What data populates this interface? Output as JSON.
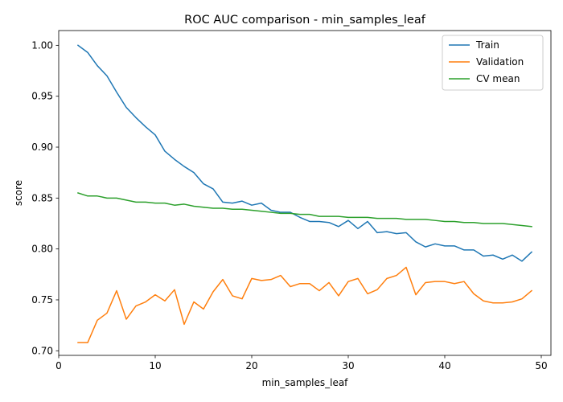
{
  "chart_data": {
    "type": "line",
    "title": "ROC AUC comparison - min_samples_leaf",
    "xlabel": "min_samples_leaf",
    "ylabel": "score",
    "xlim": [
      0,
      51
    ],
    "ylim": [
      0.6955,
      1.0145
    ],
    "xticks": [
      0,
      10,
      20,
      30,
      40,
      50
    ],
    "yticks": [
      0.7,
      0.75,
      0.8,
      0.85,
      0.9,
      0.95,
      1.0
    ],
    "ytick_labels": [
      "0.70",
      "0.75",
      "0.80",
      "0.85",
      "0.90",
      "0.95",
      "1.00"
    ],
    "grid": false,
    "legend_position": "top-right",
    "x": [
      2,
      3,
      4,
      5,
      6,
      7,
      8,
      9,
      10,
      11,
      12,
      13,
      14,
      15,
      16,
      17,
      18,
      19,
      20,
      21,
      22,
      23,
      24,
      25,
      26,
      27,
      28,
      29,
      30,
      31,
      32,
      33,
      34,
      35,
      36,
      37,
      38,
      39,
      40,
      41,
      42,
      43,
      44,
      45,
      46,
      47,
      48,
      49
    ],
    "series": [
      {
        "name": "Train",
        "color": "#1f77b4",
        "values": [
          1.0,
          0.993,
          0.98,
          0.97,
          0.954,
          0.939,
          0.929,
          0.92,
          0.912,
          0.896,
          0.888,
          0.881,
          0.875,
          0.864,
          0.859,
          0.846,
          0.845,
          0.847,
          0.843,
          0.845,
          0.838,
          0.836,
          0.836,
          0.831,
          0.827,
          0.827,
          0.826,
          0.822,
          0.828,
          0.82,
          0.827,
          0.816,
          0.817,
          0.815,
          0.816,
          0.807,
          0.802,
          0.805,
          0.803,
          0.803,
          0.799,
          0.799,
          0.793,
          0.794,
          0.79,
          0.794,
          0.788,
          0.797
        ]
      },
      {
        "name": "Validation",
        "color": "#ff7f0e",
        "values": [
          0.708,
          0.708,
          0.73,
          0.737,
          0.759,
          0.731,
          0.744,
          0.748,
          0.755,
          0.749,
          0.76,
          0.726,
          0.748,
          0.741,
          0.758,
          0.77,
          0.754,
          0.751,
          0.771,
          0.769,
          0.77,
          0.774,
          0.763,
          0.766,
          0.766,
          0.759,
          0.767,
          0.754,
          0.768,
          0.771,
          0.756,
          0.76,
          0.771,
          0.774,
          0.782,
          0.755,
          0.767,
          0.768,
          0.768,
          0.766,
          0.768,
          0.756,
          0.749,
          0.747,
          0.747,
          0.748,
          0.751,
          0.759
        ]
      },
      {
        "name": "CV mean",
        "color": "#2ca02c",
        "values": [
          0.855,
          0.852,
          0.852,
          0.85,
          0.85,
          0.848,
          0.846,
          0.846,
          0.845,
          0.845,
          0.843,
          0.844,
          0.842,
          0.841,
          0.84,
          0.84,
          0.839,
          0.839,
          0.838,
          0.837,
          0.836,
          0.835,
          0.835,
          0.834,
          0.834,
          0.832,
          0.832,
          0.832,
          0.831,
          0.831,
          0.831,
          0.83,
          0.83,
          0.83,
          0.829,
          0.829,
          0.829,
          0.828,
          0.827,
          0.827,
          0.826,
          0.826,
          0.825,
          0.825,
          0.825,
          0.824,
          0.823,
          0.822
        ]
      }
    ]
  }
}
